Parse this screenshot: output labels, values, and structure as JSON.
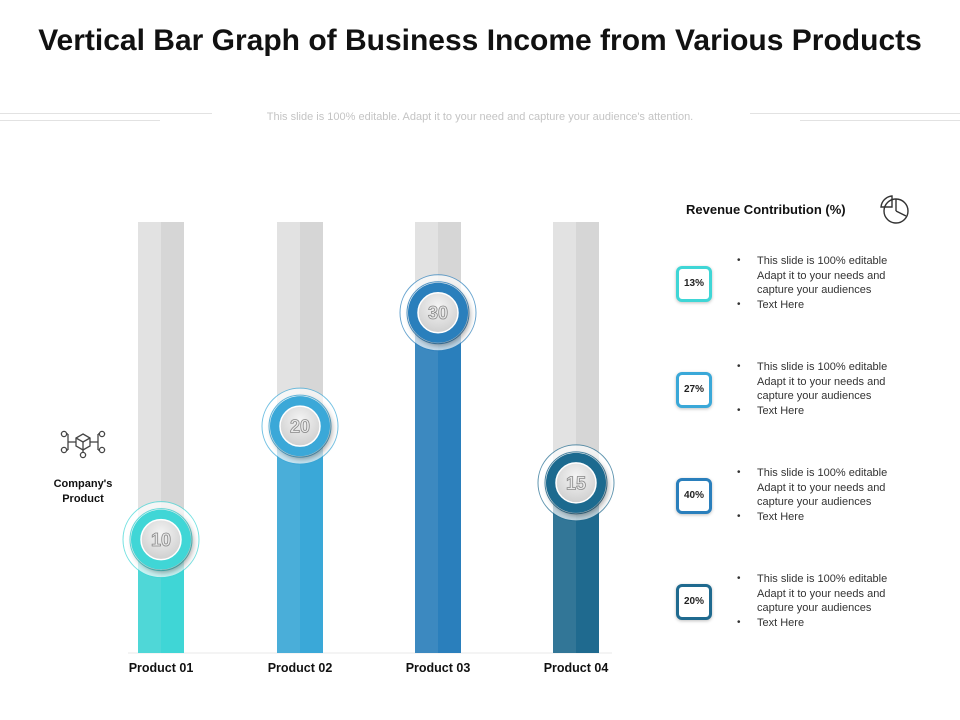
{
  "title": "Vertical Bar Graph of Business Income from Various Products",
  "subtitle": "This slide is 100% editable. Adapt it to your need and capture your audience's attention.",
  "side_label": "Company's Product",
  "side_icon": "network-cubes-icon",
  "revenue": {
    "title": "Revenue Contribution (%)",
    "icon": "pie-chart-icon",
    "items": [
      {
        "pct": "13%",
        "color": "#3fd6d6",
        "line1": "This slide is 100% editable",
        "line2": "Adapt it to your needs and",
        "line3": "capture your audiences",
        "line4": "Text Here"
      },
      {
        "pct": "27%",
        "color": "#3aa8d8",
        "line1": "This slide is 100% editable",
        "line2": "Adapt it to your needs and",
        "line3": "capture your audiences",
        "line4": "Text Here"
      },
      {
        "pct": "40%",
        "color": "#2a7fbc",
        "line1": "This slide is 100% editable",
        "line2": "Adapt it to your needs and",
        "line3": "capture your audiences",
        "line4": "Text Here"
      },
      {
        "pct": "20%",
        "color": "#1f6a8f",
        "line1": "This slide is 100% editable",
        "line2": "Adapt it to your needs and",
        "line3": "capture your audiences",
        "line4": "Text Here"
      }
    ]
  },
  "chart_data": {
    "type": "bar",
    "title": "Vertical Bar Graph of Business Income from Various Products",
    "categories": [
      "Product 01",
      "Product 02",
      "Product 03",
      "Product 04"
    ],
    "values": [
      10,
      20,
      30,
      15
    ],
    "value_labels": [
      "10",
      "20",
      "30",
      "15"
    ],
    "ylim": [
      0,
      38
    ],
    "grid": false,
    "colors": [
      "#3fd6d6",
      "#3aa8d8",
      "#2a7fbc",
      "#1f6a8f"
    ],
    "track_color": "#e0e0e0"
  }
}
